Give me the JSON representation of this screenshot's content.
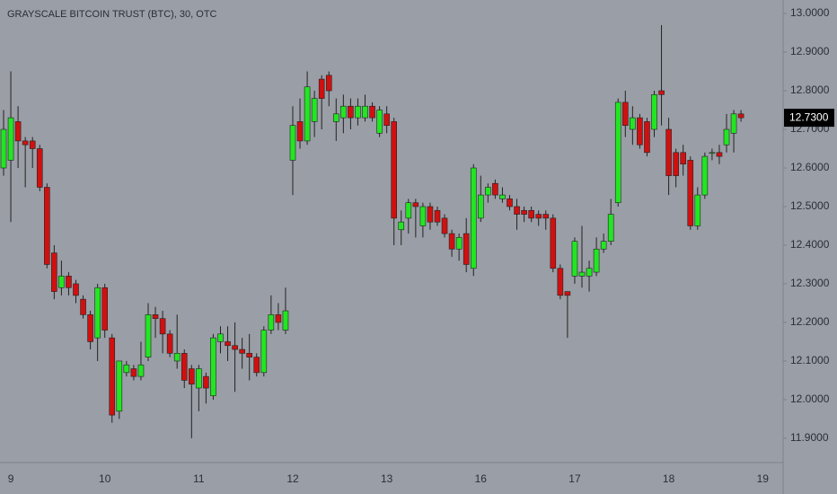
{
  "chart_data": {
    "type": "candlestick",
    "title": "GRAYSCALE BITCOIN TRUST (BTC), 30, OTC",
    "background": "#9a9ea6",
    "up_color": "#22e622",
    "down_color": "#d01010",
    "grid": false,
    "ylim": [
      11.837,
      13.035
    ],
    "yticks": [
      {
        "value": 11.9,
        "label": "11.9000"
      },
      {
        "value": 12.0,
        "label": "12.0000"
      },
      {
        "value": 12.1,
        "label": "12.1000"
      },
      {
        "value": 12.2,
        "label": "12.2000"
      },
      {
        "value": 12.3,
        "label": "12.3000"
      },
      {
        "value": 12.4,
        "label": "12.4000"
      },
      {
        "value": 12.5,
        "label": "12.5000"
      },
      {
        "value": 12.6,
        "label": "12.6000"
      },
      {
        "value": 12.7,
        "label": "12.7000"
      },
      {
        "value": 12.8,
        "label": "12.8000"
      },
      {
        "value": 12.9,
        "label": "12.9000"
      },
      {
        "value": 13.0,
        "label": "13.0000"
      }
    ],
    "last_price": {
      "value": 12.73,
      "label": "12.7300"
    },
    "categories": [
      null,
      "9",
      null,
      null,
      null,
      null,
      null,
      null,
      null,
      null,
      null,
      null,
      null,
      null,
      "10",
      null,
      null,
      null,
      null,
      null,
      null,
      null,
      null,
      null,
      null,
      null,
      null,
      "11",
      null,
      null,
      null,
      null,
      null,
      null,
      null,
      null,
      null,
      null,
      null,
      null,
      "12",
      null,
      null,
      null,
      null,
      null,
      null,
      null,
      null,
      null,
      null,
      null,
      null,
      "13",
      null,
      null,
      null,
      null,
      null,
      null,
      null,
      null,
      null,
      null,
      null,
      null,
      "16",
      null,
      null,
      null,
      null,
      null,
      null,
      null,
      null,
      null,
      null,
      null,
      null,
      "17",
      null,
      null,
      null,
      null,
      null,
      null,
      null,
      null,
      null,
      null,
      null,
      null,
      "18",
      null,
      null,
      null,
      null,
      null,
      null,
      null,
      null,
      null,
      null,
      null,
      null,
      "19"
    ],
    "open": [
      12.6,
      12.62,
      12.72,
      12.67,
      12.67,
      12.65,
      12.55,
      12.38,
      12.29,
      12.32,
      12.3,
      12.26,
      12.22,
      12.16,
      12.29,
      12.16,
      11.97,
      12.07,
      12.08,
      12.06,
      12.11,
      12.22,
      12.21,
      12.17,
      12.1,
      12.12,
      12.08,
      12.03,
      12.06,
      12.01,
      12.15,
      12.15,
      12.14,
      12.13,
      12.12,
      12.11,
      12.07,
      12.18,
      12.22,
      12.18,
      12.62,
      12.72,
      12.67,
      12.72,
      12.83,
      12.84,
      12.72,
      12.73,
      12.76,
      12.73,
      12.73,
      12.76,
      12.69,
      12.74,
      12.72,
      12.44,
      12.47,
      12.51,
      12.45,
      12.5,
      12.49,
      12.47,
      12.43,
      12.39,
      12.43,
      12.34,
      12.47,
      12.53,
      12.56,
      12.52,
      12.52,
      12.5,
      12.49,
      12.49,
      12.48,
      12.48,
      12.47,
      12.34,
      12.28,
      12.32,
      12.32,
      12.32,
      12.33,
      12.39,
      12.41,
      12.51,
      12.77,
      12.7,
      12.73,
      12.72,
      12.7,
      12.8,
      12.7,
      12.64,
      12.64,
      12.62,
      12.45,
      12.53,
      12.64,
      12.64,
      12.66,
      12.69,
      12.74,
      null,
      null,
      null
    ],
    "high": [
      12.75,
      12.85,
      12.76,
      12.68,
      12.68,
      12.66,
      12.56,
      12.4,
      12.36,
      12.33,
      12.31,
      12.27,
      12.23,
      12.3,
      12.3,
      12.17,
      12.1,
      12.1,
      12.09,
      12.15,
      12.25,
      12.24,
      12.23,
      12.18,
      12.22,
      12.13,
      12.09,
      12.09,
      12.07,
      12.17,
      12.19,
      12.19,
      12.2,
      12.16,
      12.17,
      12.12,
      12.19,
      12.27,
      12.25,
      12.29,
      12.76,
      12.78,
      12.85,
      12.8,
      12.84,
      12.85,
      12.78,
      12.79,
      12.78,
      12.78,
      12.79,
      12.77,
      12.76,
      12.76,
      12.73,
      12.49,
      12.52,
      12.52,
      12.51,
      12.51,
      12.5,
      12.48,
      12.44,
      12.43,
      12.47,
      12.61,
      12.58,
      12.56,
      12.57,
      12.55,
      12.53,
      12.52,
      12.5,
      12.5,
      12.49,
      12.49,
      12.48,
      12.35,
      12.28,
      12.42,
      12.45,
      12.36,
      12.42,
      12.43,
      12.52,
      12.78,
      12.8,
      12.76,
      12.74,
      12.73,
      12.8,
      12.97,
      12.73,
      12.65,
      12.66,
      12.63,
      12.55,
      12.64,
      12.65,
      12.66,
      12.74,
      12.75,
      12.75,
      null,
      null,
      null
    ],
    "low": [
      12.58,
      12.46,
      12.6,
      12.55,
      12.6,
      12.54,
      12.34,
      12.26,
      12.27,
      12.27,
      12.25,
      12.21,
      12.13,
      12.1,
      12.16,
      11.94,
      11.95,
      12.06,
      12.05,
      12.05,
      12.1,
      12.16,
      12.12,
      12.11,
      12.08,
      12.03,
      11.9,
      11.97,
      11.99,
      12.0,
      12.12,
      12.1,
      12.02,
      12.08,
      12.05,
      12.06,
      12.06,
      12.17,
      12.18,
      12.17,
      12.53,
      12.65,
      12.66,
      12.68,
      12.7,
      12.76,
      12.67,
      12.69,
      12.7,
      12.71,
      12.72,
      12.72,
      12.68,
      12.69,
      12.4,
      12.4,
      12.43,
      12.42,
      12.42,
      12.44,
      12.45,
      12.42,
      12.37,
      12.36,
      12.33,
      12.32,
      12.46,
      12.51,
      12.52,
      12.51,
      12.49,
      12.44,
      12.46,
      12.46,
      12.45,
      12.44,
      12.33,
      12.26,
      12.16,
      12.3,
      12.29,
      12.28,
      12.32,
      12.38,
      12.4,
      12.5,
      12.68,
      12.66,
      12.65,
      12.63,
      12.68,
      12.71,
      12.53,
      12.55,
      12.58,
      12.44,
      12.44,
      12.52,
      12.62,
      12.61,
      12.64,
      12.64,
      12.72,
      null,
      null,
      null
    ],
    "close": [
      12.7,
      12.73,
      12.67,
      12.66,
      12.65,
      12.55,
      12.35,
      12.28,
      12.32,
      12.29,
      12.27,
      12.22,
      12.15,
      12.29,
      12.18,
      11.96,
      12.1,
      12.09,
      12.06,
      12.09,
      12.22,
      12.21,
      12.17,
      12.12,
      12.12,
      12.05,
      12.04,
      12.08,
      12.03,
      12.16,
      12.17,
      12.14,
      12.13,
      12.12,
      12.11,
      12.07,
      12.18,
      12.22,
      12.2,
      12.23,
      12.71,
      12.67,
      12.81,
      12.78,
      12.78,
      12.8,
      12.74,
      12.76,
      12.73,
      12.76,
      12.76,
      12.73,
      12.75,
      12.71,
      12.47,
      12.46,
      12.51,
      12.5,
      12.5,
      12.46,
      12.46,
      12.43,
      12.39,
      12.42,
      12.35,
      12.6,
      12.53,
      12.55,
      12.53,
      12.53,
      12.5,
      12.48,
      12.48,
      12.47,
      12.47,
      12.47,
      12.34,
      12.27,
      12.27,
      12.41,
      12.33,
      12.34,
      12.39,
      12.41,
      12.48,
      12.77,
      12.71,
      12.73,
      12.66,
      12.64,
      12.79,
      12.79,
      12.58,
      12.58,
      12.61,
      12.45,
      12.53,
      12.63,
      12.64,
      12.63,
      12.7,
      12.74,
      12.73,
      null,
      null,
      null
    ]
  }
}
